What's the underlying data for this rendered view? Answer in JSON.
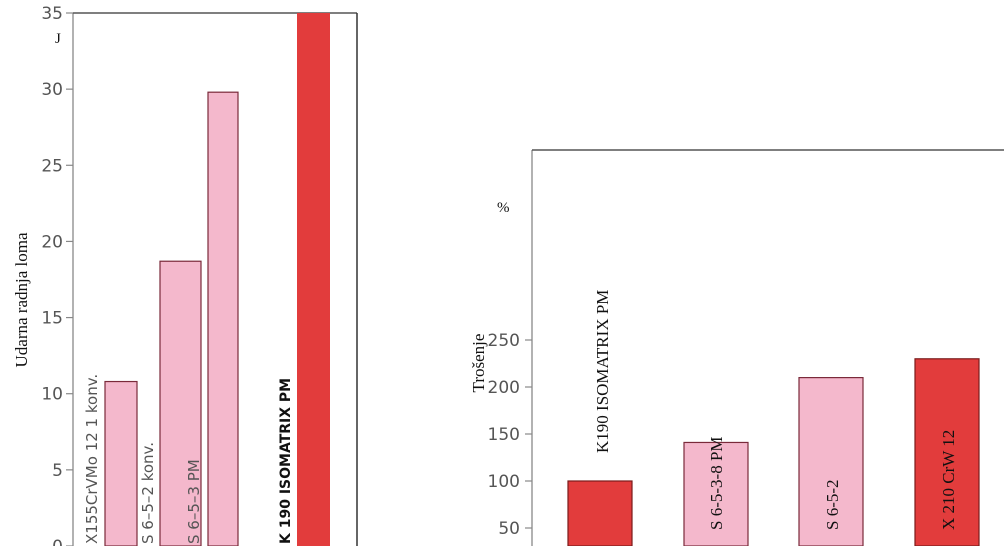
{
  "chart_data": [
    {
      "type": "bar",
      "title": "",
      "ylabel": "Udarna radnja loma",
      "unit": "J",
      "ylim": [
        0,
        35
      ],
      "yticks": [
        "0",
        "5",
        "10",
        "15",
        "20",
        "25",
        "30",
        "35"
      ],
      "categories": [
        "X155CrVMo 12 1 konv.",
        "S 6–5–2 konv.",
        "S 6–5–3 PM",
        "K 190 ISOMATRIX PM"
      ],
      "values": [
        10.8,
        18.7,
        29.8,
        35
      ],
      "colors": [
        "#f4b8cc",
        "#f4b8cc",
        "#f4b8cc",
        "#e23c3c"
      ],
      "grid": false
    },
    {
      "type": "bar",
      "title": "",
      "ylabel": "Trošenje",
      "unit": "%",
      "ylim": [
        50,
        250
      ],
      "yticks": [
        "50",
        "100",
        "150",
        "200",
        "250"
      ],
      "categories": [
        "K190 ISOMATRIX PM",
        "S 6-5-3-8 PM",
        "S 6-5-2",
        "X 210 CrW 12"
      ],
      "values": [
        100,
        141,
        210,
        230
      ],
      "colors": [
        "#e23c3c",
        "#f4b8cc",
        "#f4b8cc",
        "#e23c3c"
      ],
      "grid": false
    }
  ]
}
